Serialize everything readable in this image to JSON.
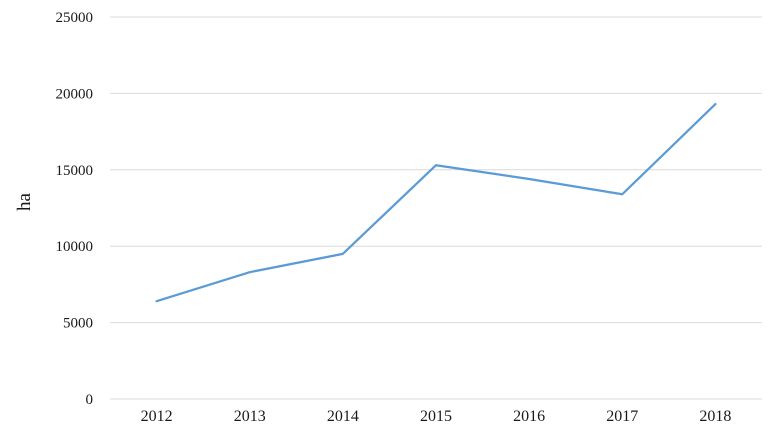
{
  "chart_data": {
    "type": "line",
    "title": "",
    "categories": [
      "2012",
      "2013",
      "2014",
      "2015",
      "2016",
      "2017",
      "2018"
    ],
    "series": [
      {
        "name": "ha",
        "values": [
          6400,
          8300,
          9500,
          15300,
          14400,
          13400,
          19300
        ]
      }
    ],
    "xlabel": "",
    "ylabel": "ha",
    "ylim": [
      0,
      25000
    ],
    "yticks": [
      0,
      5000,
      10000,
      15000,
      20000,
      25000
    ],
    "grid": true,
    "legend": "none",
    "colors": {
      "line": "#5B9BD5",
      "gridline": "#D9D9D9",
      "text": "#1a1a1a",
      "background": "#FFFFFF"
    }
  }
}
